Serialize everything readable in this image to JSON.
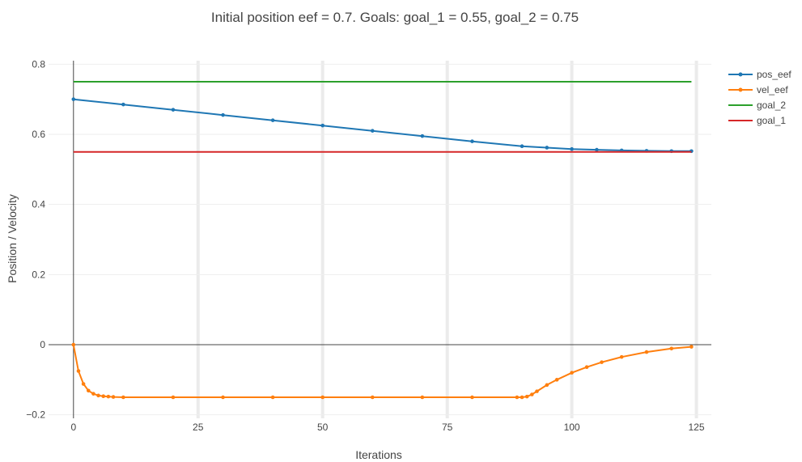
{
  "chart_data": {
    "type": "line",
    "title": "Initial position eef = 0.7.  Goals: goal_1 = 0.55, goal_2 = 0.75",
    "xlabel": "Iterations",
    "ylabel": "Position / Velocity",
    "xlim": [
      -5,
      128
    ],
    "ylim": [
      -0.21,
      0.81
    ],
    "xticks": [
      0,
      25,
      50,
      75,
      100,
      125
    ],
    "xtick_labels": [
      "0",
      "25",
      "50",
      "75",
      "100",
      "125"
    ],
    "yticks": [
      -0.2,
      0,
      0.2,
      0.4,
      0.6,
      0.8
    ],
    "ytick_labels": [
      "−0.2",
      "0",
      "0.2",
      "0.4",
      "0.6",
      "0.8"
    ],
    "grid": true,
    "legend_position": "top-right",
    "series": [
      {
        "name": "pos_eef",
        "color": "#1f77b4",
        "markers": true,
        "x": [
          0,
          10,
          20,
          30,
          40,
          50,
          60,
          70,
          80,
          90,
          95,
          100,
          105,
          110,
          115,
          120,
          124
        ],
        "values": [
          0.7,
          0.685,
          0.67,
          0.655,
          0.64,
          0.625,
          0.61,
          0.595,
          0.58,
          0.566,
          0.562,
          0.558,
          0.556,
          0.554,
          0.553,
          0.552,
          0.552
        ]
      },
      {
        "name": "vel_eef",
        "color": "#ff7f0e",
        "markers": true,
        "x": [
          0,
          1,
          2,
          3,
          4,
          5,
          6,
          7,
          8,
          10,
          20,
          30,
          40,
          50,
          60,
          70,
          80,
          89,
          90,
          91,
          92,
          93,
          95,
          97,
          100,
          103,
          106,
          110,
          115,
          120,
          124
        ],
        "values": [
          0,
          -0.075,
          -0.112,
          -0.131,
          -0.14,
          -0.145,
          -0.147,
          -0.148,
          -0.149,
          -0.15,
          -0.15,
          -0.15,
          -0.15,
          -0.15,
          -0.15,
          -0.15,
          -0.15,
          -0.15,
          -0.15,
          -0.148,
          -0.142,
          -0.133,
          -0.115,
          -0.1,
          -0.08,
          -0.064,
          -0.05,
          -0.035,
          -0.021,
          -0.011,
          -0.006
        ]
      },
      {
        "name": "goal_2",
        "color": "#2ca02c",
        "markers": false,
        "x": [
          0,
          124
        ],
        "values": [
          0.75,
          0.75
        ]
      },
      {
        "name": "goal_1",
        "color": "#d62728",
        "markers": false,
        "x": [
          0,
          124
        ],
        "values": [
          0.55,
          0.55
        ]
      }
    ]
  }
}
